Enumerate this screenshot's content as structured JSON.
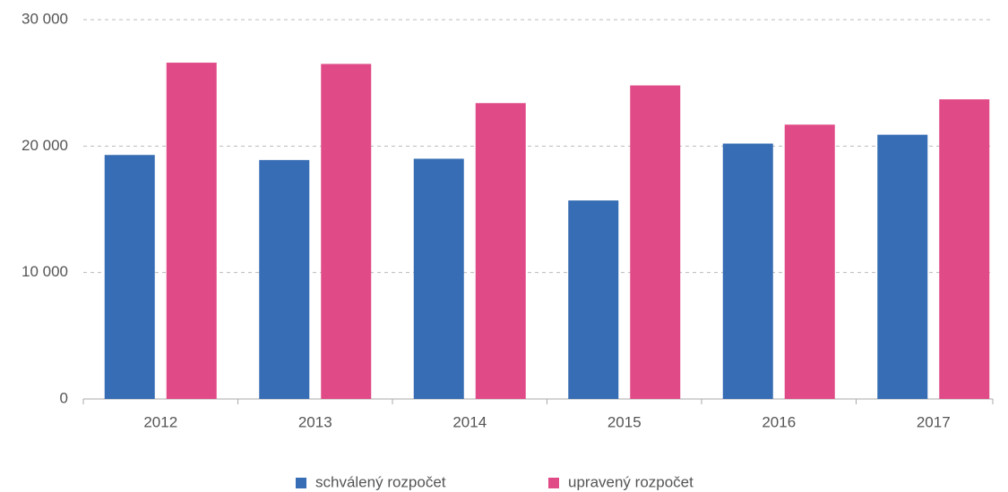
{
  "chart_data": {
    "type": "bar",
    "categories": [
      "2012",
      "2013",
      "2014",
      "2015",
      "2016",
      "2017"
    ],
    "series": [
      {
        "name": "schválený rozpočet",
        "color": "#376db4",
        "values": [
          19300,
          18900,
          19000,
          15700,
          20200,
          20900
        ]
      },
      {
        "name": "upravený rozpočet",
        "color": "#e04b87",
        "values": [
          26600,
          26500,
          23400,
          24800,
          21700,
          23700
        ]
      }
    ],
    "ylim": [
      0,
      30000
    ],
    "yticks": [
      0,
      {
        "value": 10000,
        "label": "10 000"
      },
      {
        "value": 20000,
        "label": "20 000"
      },
      {
        "value": 30000,
        "label": "30 000"
      }
    ],
    "grid": true,
    "legend": "bottom"
  }
}
